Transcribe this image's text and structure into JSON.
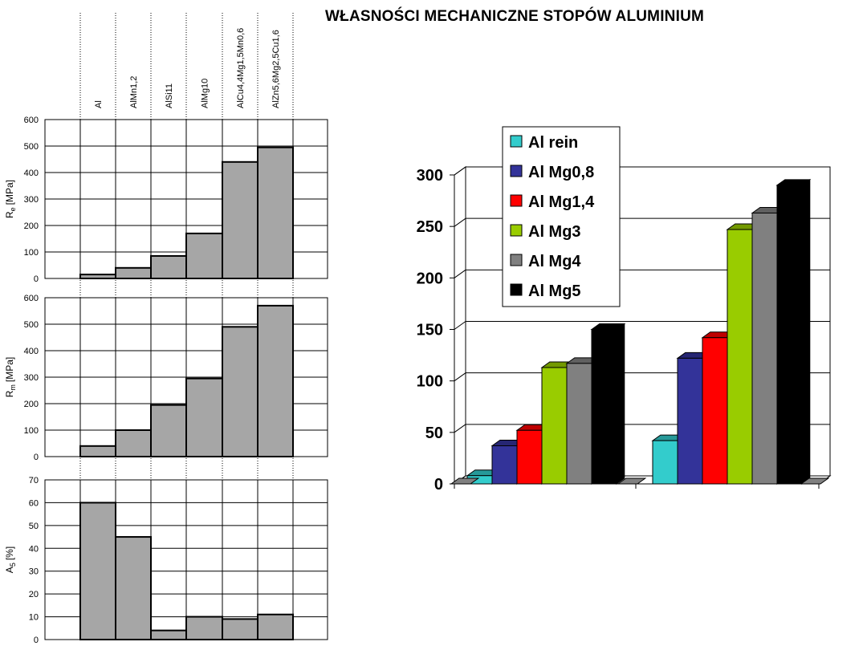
{
  "title": "WŁASNOŚCI MECHANICZNE STOPÓW ALUMINIUM",
  "chart_data": [
    {
      "type": "bar",
      "categories": [
        "Al",
        "AlMn1,2",
        "AlSi11",
        "AlMg10",
        "AlCu4,4Mg1,5Mn0,6",
        "AlZn5,6Mg2,5Cu1,6"
      ],
      "values": [
        15,
        40,
        85,
        170,
        440,
        495
      ],
      "ylabel_main": "R",
      "ylabel_sub": "e",
      "ylabel_unit": "[MPa]",
      "ylim": [
        0,
        600
      ],
      "yticks": [
        "0",
        "100",
        "200",
        "300",
        "400",
        "500",
        "600"
      ],
      "color": "#a6a6a6"
    },
    {
      "type": "bar",
      "categories": [
        "Al",
        "AlMn1,2",
        "AlSi11",
        "AlMg10",
        "AlCu4,4Mg1,5Mn0,6",
        "AlZn5,6Mg2,5Cu1,6"
      ],
      "values": [
        40,
        100,
        195,
        295,
        490,
        570
      ],
      "ylabel_main": "R",
      "ylabel_sub": "m",
      "ylabel_unit": "[MPa]",
      "ylim": [
        0,
        600
      ],
      "yticks": [
        "0",
        "100",
        "200",
        "300",
        "400",
        "500",
        "600"
      ],
      "color": "#a6a6a6"
    },
    {
      "type": "bar",
      "categories": [
        "Al",
        "AlMn1,2",
        "AlSi11",
        "AlMg10",
        "AlCu4,4Mg1,5Mn0,6",
        "AlZn5,6Mg2,5Cu1,6"
      ],
      "values": [
        60,
        45,
        4,
        10,
        9,
        11
      ],
      "ylabel_main": "A",
      "ylabel_sub": "5",
      "ylabel_unit": "[%]",
      "ylim": [
        0,
        70
      ],
      "yticks": [
        "0",
        "10",
        "20",
        "30",
        "40",
        "50",
        "60",
        "70"
      ],
      "color": "#a6a6a6"
    },
    {
      "type": "bar",
      "style": "3d",
      "groups": [
        "",
        ""
      ],
      "series": [
        {
          "name": "Al rein",
          "color": "#33cccc",
          "values": [
            8,
            42
          ]
        },
        {
          "name": "Al Mg0,8",
          "color": "#333399",
          "values": [
            37,
            122
          ]
        },
        {
          "name": "Al Mg1,4",
          "color": "#ff0000",
          "values": [
            52,
            142
          ]
        },
        {
          "name": "Al Mg3",
          "color": "#99cc00",
          "values": [
            113,
            247
          ]
        },
        {
          "name": "Al Mg4",
          "color": "#808080",
          "values": [
            117,
            263
          ]
        },
        {
          "name": "Al Mg5",
          "color": "#000000",
          "values": [
            150,
            290
          ]
        }
      ],
      "ylim": [
        0,
        300
      ],
      "yticks": [
        "0",
        "50",
        "100",
        "150",
        "200",
        "250",
        "300"
      ],
      "legend_position": "top-left"
    }
  ]
}
